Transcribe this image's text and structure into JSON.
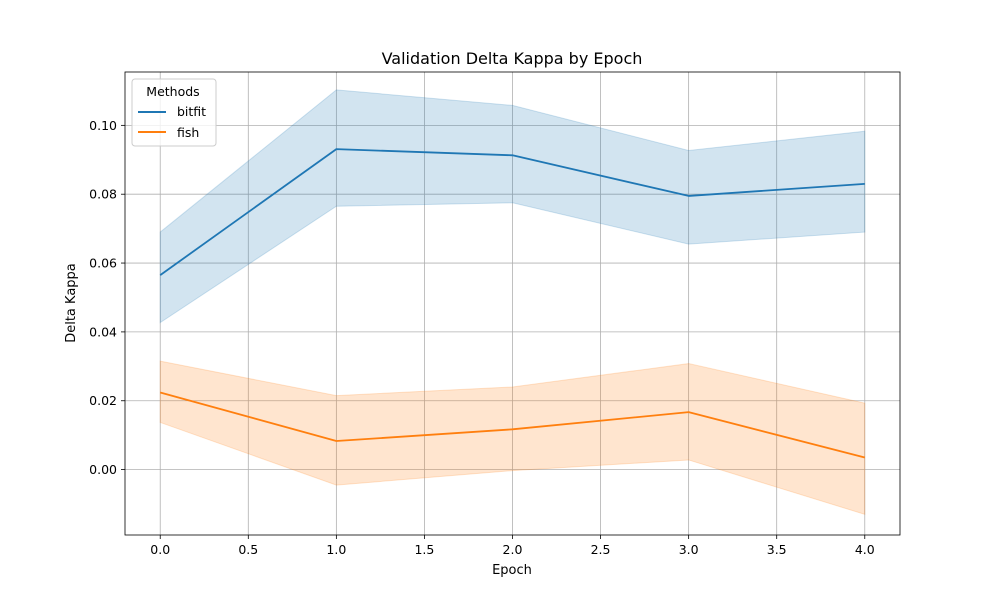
{
  "chart_data": {
    "type": "line",
    "title": "Validation Delta Kappa by Epoch",
    "xlabel": "Epoch",
    "ylabel": "Delta Kappa",
    "xlim": [
      -0.2,
      4.2
    ],
    "ylim": [
      -0.019,
      0.1155
    ],
    "xticks": [
      0.0,
      0.5,
      1.0,
      1.5,
      2.0,
      2.5,
      3.0,
      3.5,
      4.0
    ],
    "xtick_labels": [
      "0.0",
      "0.5",
      "1.0",
      "1.5",
      "2.0",
      "2.5",
      "3.0",
      "3.5",
      "4.0"
    ],
    "yticks": [
      0.0,
      0.02,
      0.04,
      0.06,
      0.08,
      0.1
    ],
    "ytick_labels": [
      "0.00",
      "0.02",
      "0.04",
      "0.06",
      "0.08",
      "0.10"
    ],
    "grid": true,
    "legend": {
      "title": "Methods",
      "position": "top-left"
    },
    "x": [
      0,
      1,
      2,
      3,
      4
    ],
    "series": [
      {
        "name": "bitfit",
        "color": "#1f77b4",
        "values": [
          0.0565,
          0.0931,
          0.0913,
          0.0795,
          0.083
        ],
        "ci_lower": [
          0.0427,
          0.0765,
          0.0775,
          0.0655,
          0.069
        ],
        "ci_upper": [
          0.069,
          0.1103,
          0.1058,
          0.0927,
          0.0983
        ]
      },
      {
        "name": "fish",
        "color": "#ff7f0e",
        "values": [
          0.0224,
          0.0083,
          0.0117,
          0.0167,
          0.0035
        ],
        "ci_lower": [
          0.0137,
          -0.0045,
          -0.0003,
          0.0028,
          -0.013
        ],
        "ci_upper": [
          0.0315,
          0.0215,
          0.024,
          0.0308,
          0.0193
        ]
      }
    ]
  }
}
